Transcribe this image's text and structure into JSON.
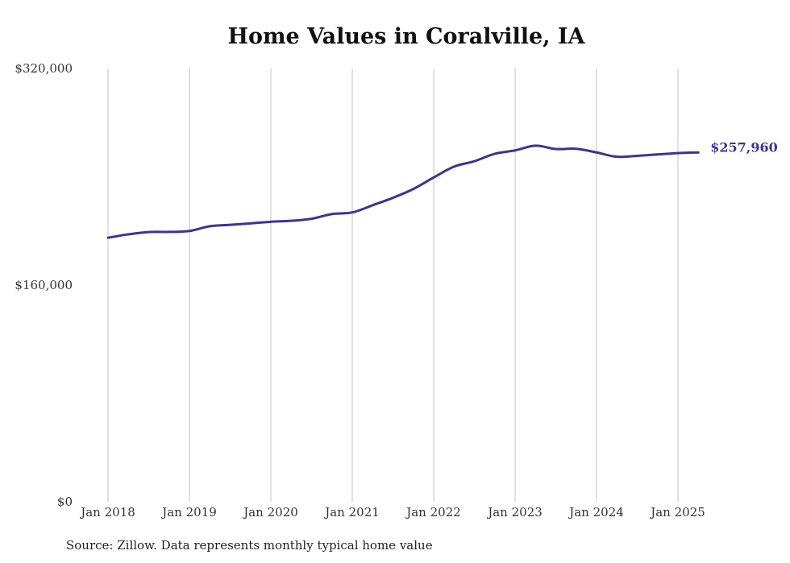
{
  "chart_data": {
    "type": "line",
    "title": "Home Values in Coralville, IA",
    "xlabel": "",
    "ylabel": "",
    "ylim": [
      0,
      320000
    ],
    "y_ticks": [
      0,
      160000,
      320000
    ],
    "y_tick_labels": [
      "$0",
      "$160,000",
      "$320,000"
    ],
    "x_ticks": [
      "2018-01",
      "2019-01",
      "2020-01",
      "2021-01",
      "2022-01",
      "2023-01",
      "2024-01",
      "2025-01"
    ],
    "x_tick_labels": [
      "Jan 2018",
      "Jan 2019",
      "Jan 2020",
      "Jan 2021",
      "Jan 2022",
      "Jan 2023",
      "Jan 2024",
      "Jan 2025"
    ],
    "grid": "vertical",
    "line_color": "#3b3495",
    "end_label": "$257,960",
    "series": [
      {
        "x": [
          "2018-01",
          "2018-04",
          "2018-07",
          "2018-10",
          "2019-01",
          "2019-04",
          "2019-07",
          "2019-10",
          "2020-01",
          "2020-04",
          "2020-07",
          "2020-10",
          "2021-01",
          "2021-04",
          "2021-07",
          "2021-10",
          "2022-01",
          "2022-04",
          "2022-07",
          "2022-10",
          "2023-01",
          "2023-04",
          "2023-07",
          "2023-10",
          "2024-01",
          "2024-04",
          "2024-07",
          "2024-10",
          "2025-01",
          "2025-04"
        ],
        "values": [
          195000,
          197500,
          199200,
          199300,
          200000,
          203500,
          204500,
          205600,
          206800,
          207500,
          209000,
          212500,
          213700,
          219000,
          224500,
          231000,
          239500,
          247500,
          251500,
          257000,
          259500,
          263000,
          260500,
          260700,
          258000,
          254800,
          255500,
          256500,
          257500,
          257960
        ]
      }
    ]
  },
  "footer": {
    "source": "Source: Zillow. Data represents monthly typical home value"
  }
}
